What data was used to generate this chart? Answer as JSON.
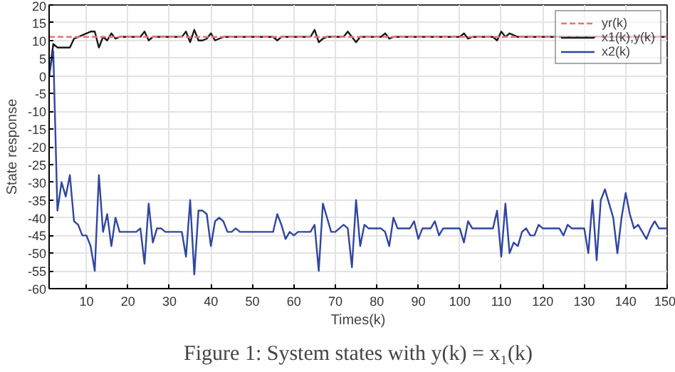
{
  "chart_data": {
    "type": "line",
    "xlabel": "Times(k)",
    "ylabel": "State response",
    "annotations": [
      "Figure 1: System states with y(k) = x₁(k)"
    ],
    "x": [
      1,
      2,
      3,
      4,
      5,
      6,
      7,
      8,
      9,
      10,
      11,
      12,
      13,
      14,
      15,
      16,
      17,
      18,
      19,
      20,
      21,
      22,
      23,
      24,
      25,
      26,
      27,
      28,
      29,
      30,
      31,
      32,
      33,
      34,
      35,
      36,
      37,
      38,
      39,
      40,
      41,
      42,
      43,
      44,
      45,
      46,
      47,
      48,
      49,
      50,
      51,
      52,
      53,
      54,
      55,
      56,
      57,
      58,
      59,
      60,
      61,
      62,
      63,
      64,
      65,
      66,
      67,
      68,
      69,
      70,
      71,
      72,
      73,
      74,
      75,
      76,
      77,
      78,
      79,
      80,
      81,
      82,
      83,
      84,
      85,
      86,
      87,
      88,
      89,
      90,
      91,
      92,
      93,
      94,
      95,
      96,
      97,
      98,
      99,
      100,
      101,
      102,
      103,
      104,
      105,
      106,
      107,
      108,
      109,
      110,
      111,
      112,
      113,
      114,
      115,
      116,
      117,
      118,
      119,
      120,
      121,
      122,
      123,
      124,
      125,
      126,
      127,
      128,
      129,
      130,
      131,
      132,
      133,
      134,
      135,
      136,
      137,
      138,
      139,
      140,
      141,
      142,
      143,
      144,
      145,
      146,
      147,
      148,
      149,
      150
    ],
    "series": [
      {
        "name": "yr(k)",
        "color": "#e8737a",
        "line_style": "dashed",
        "x": [
          1,
          150
        ],
        "values": [
          11,
          11
        ]
      },
      {
        "name": "x1(k),y(k)",
        "color": "#1a1a1a",
        "values": [
          0,
          9,
          8,
          8,
          8,
          8,
          10.5,
          11,
          11.5,
          12,
          12.5,
          12.5,
          8,
          11,
          10,
          12,
          10.5,
          11,
          11,
          11,
          11,
          11,
          11,
          12.5,
          10,
          11,
          11,
          11,
          11,
          11,
          11,
          11,
          11,
          12.5,
          9.5,
          13,
          10,
          10,
          10.5,
          12,
          10,
          10.5,
          11,
          11,
          11,
          11,
          11,
          11,
          11,
          11,
          11,
          11,
          11,
          11,
          11,
          10,
          11,
          11,
          11,
          11,
          11,
          11,
          11,
          11,
          13,
          9.5,
          10.5,
          11,
          11,
          11,
          11,
          11,
          12.5,
          11,
          9.5,
          11,
          11,
          11,
          11,
          11,
          11,
          12,
          10.5,
          11,
          11,
          11,
          11,
          11,
          11,
          11,
          11,
          11,
          11,
          11,
          11,
          11,
          11,
          11,
          11,
          11,
          12,
          10.5,
          11,
          11,
          11,
          11,
          11,
          11,
          10,
          12.5,
          11,
          12,
          11.5,
          11,
          11,
          11,
          11,
          11,
          11,
          11,
          11,
          11,
          11,
          11,
          11,
          11,
          11,
          11,
          11,
          11,
          11,
          11,
          11,
          11,
          11,
          11,
          11,
          11,
          11,
          11,
          11,
          11,
          11,
          11,
          11,
          11,
          11,
          11,
          11,
          11
        ]
      },
      {
        "name": "x2(k)",
        "color": "#3046a0",
        "values": [
          0,
          7,
          -38,
          -30,
          -34,
          -28,
          -41,
          -42,
          -45,
          -45,
          -48,
          -55,
          -28,
          -44,
          -39,
          -48,
          -40,
          -44,
          -44,
          -44,
          -44,
          -44,
          -43,
          -53,
          -36,
          -47,
          -43,
          -43,
          -44,
          -44,
          -44,
          -44,
          -44,
          -51,
          -35,
          -56,
          -38,
          -38,
          -39,
          -48,
          -41,
          -40,
          -41,
          -44,
          -44,
          -43,
          -44,
          -44,
          -44,
          -44,
          -44,
          -44,
          -44,
          -44,
          -44,
          -39,
          -42,
          -46,
          -44,
          -45,
          -44,
          -44,
          -44,
          -44,
          -42,
          -55,
          -36,
          -40,
          -44,
          -44,
          -43,
          -42,
          -43,
          -54,
          -35,
          -48,
          -42,
          -43,
          -43,
          -43,
          -43,
          -44,
          -48,
          -40,
          -43,
          -43,
          -43,
          -43,
          -41,
          -46,
          -43,
          -43,
          -43,
          -41,
          -45,
          -43,
          -43,
          -43,
          -43,
          -43,
          -47,
          -41,
          -43,
          -43,
          -43,
          -43,
          -43,
          -43,
          -38,
          -51,
          -36,
          -50,
          -47,
          -48,
          -44,
          -43,
          -45,
          -45,
          -42,
          -43,
          -43,
          -43,
          -43,
          -43,
          -45,
          -42,
          -43,
          -43,
          -43,
          -43,
          -50,
          -35,
          -52,
          -35,
          -32,
          -36,
          -40,
          -50,
          -40,
          -33,
          -39,
          -43,
          -42,
          -44,
          -46,
          -43,
          -41,
          -43,
          -43,
          -43
        ]
      }
    ],
    "xlim": [
      1,
      150
    ],
    "ylim": [
      -60,
      20
    ],
    "xticks": [
      10,
      20,
      30,
      40,
      50,
      60,
      70,
      80,
      90,
      100,
      110,
      120,
      130,
      140,
      150
    ],
    "yticks": [
      -60,
      -55,
      -50,
      -45,
      -40,
      -35,
      -30,
      -25,
      -20,
      -15,
      -10,
      -5,
      0,
      5,
      10,
      15,
      20
    ],
    "grid": true,
    "legend": "top right"
  }
}
